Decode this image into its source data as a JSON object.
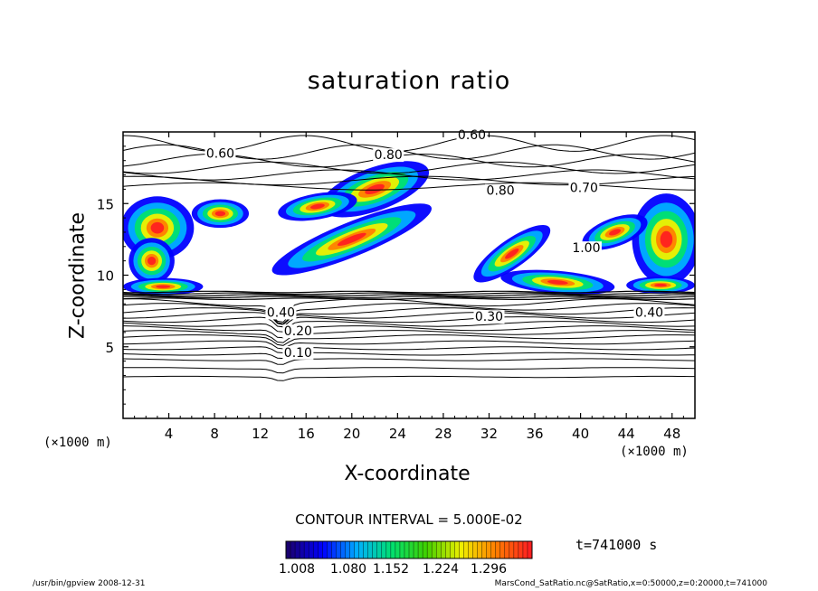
{
  "chart_data": {
    "type": "heatmap",
    "title": "saturation ratio",
    "xlabel": "X-coordinate",
    "ylabel": "Z-coordinate",
    "x_unit_left": "(×1000 m)",
    "x_unit_right": "(×1000 m)",
    "xlim": [
      0,
      50
    ],
    "ylim": [
      0,
      20
    ],
    "x_ticks": [
      "4",
      "8",
      "12",
      "16",
      "20",
      "24",
      "28",
      "32",
      "36",
      "40",
      "44",
      "48"
    ],
    "x_tick_values": [
      4,
      8,
      12,
      16,
      20,
      24,
      28,
      32,
      36,
      40,
      44,
      48
    ],
    "y_ticks": [
      "5",
      "10",
      "15"
    ],
    "y_tick_values": [
      5,
      10,
      15
    ],
    "contour_interval": "CONTOUR INTERVAL = 5.000E-02",
    "time_label": "t=741000 s",
    "colorbar_labels": [
      "1.008",
      "1.080",
      "1.152",
      "1.224",
      "1.296"
    ],
    "colorbar_colors": [
      "#1a0070",
      "#0000ff",
      "#00b0ff",
      "#00e070",
      "#40d000",
      "#f0f000",
      "#ff8000",
      "#ff2020"
    ],
    "contour_labels": [
      {
        "text": "0.60",
        "x": 8.5,
        "y": 18.2
      },
      {
        "text": "0.60",
        "x": 30.5,
        "y": 19.5
      },
      {
        "text": "0.80",
        "x": 23.2,
        "y": 18.1
      },
      {
        "text": "0.70",
        "x": 40.3,
        "y": 15.8
      },
      {
        "text": "0.80",
        "x": 33.0,
        "y": 15.6
      },
      {
        "text": "1.00",
        "x": 40.5,
        "y": 11.6
      },
      {
        "text": "0.40",
        "x": 13.8,
        "y": 7.1
      },
      {
        "text": "0.30",
        "x": 32.0,
        "y": 6.8
      },
      {
        "text": "0.40",
        "x": 46.0,
        "y": 7.1
      },
      {
        "text": "0.20",
        "x": 15.3,
        "y": 5.8
      },
      {
        "text": "0.10",
        "x": 15.3,
        "y": 4.3
      }
    ],
    "low_contour_levels_z": [
      2.9,
      3.5,
      4.1,
      4.5,
      4.9,
      5.3,
      5.7,
      6.0,
      6.3,
      6.6,
      6.9,
      7.2,
      7.5,
      7.8,
      8.1
    ],
    "high_contour_levels_z": [
      16.2,
      16.6,
      17.0,
      17.5,
      18.0,
      18.6,
      19.2
    ]
  },
  "footer": {
    "left": "/usr/bin/gpview   2008-12-31",
    "right": "MarsCond_SatRatio.nc@SatRatio,x=0:50000,z=0:20000,t=741000"
  }
}
